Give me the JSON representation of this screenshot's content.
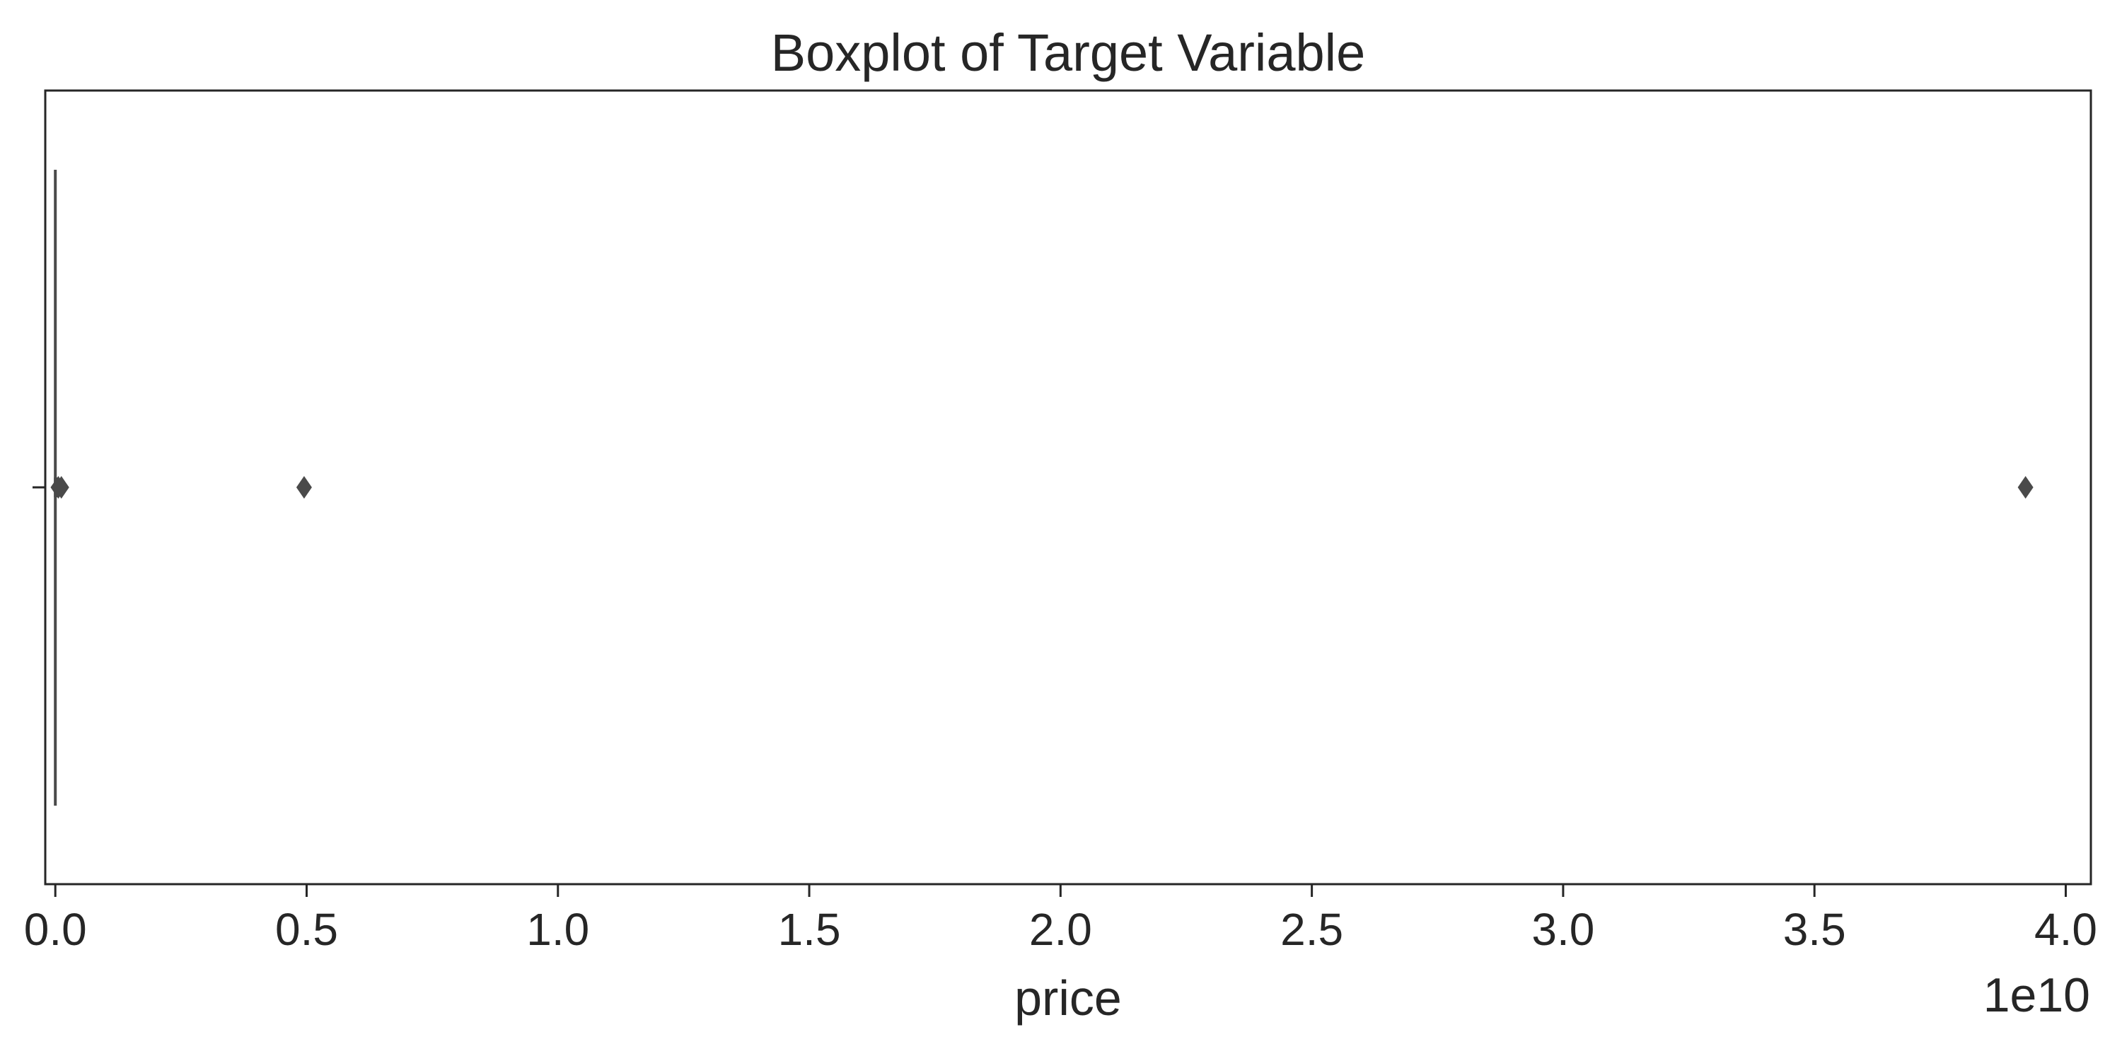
{
  "chart_data": {
    "type": "boxplot",
    "title": "Boxplot of Target Variable",
    "xlabel": "price",
    "ylabel": "",
    "offset_text": "1e10",
    "xlim": [
      -200000000,
      40500000000
    ],
    "x_ticks": [
      0,
      5000000000,
      10000000000,
      15000000000,
      20000000000,
      25000000000,
      30000000000,
      35000000000,
      40000000000
    ],
    "x_tick_labels": [
      "0.0",
      "0.5",
      "1.0",
      "1.5",
      "2.0",
      "2.5",
      "3.0",
      "3.5",
      "4.0"
    ],
    "grid": false,
    "series": [
      {
        "whisker_low": 0,
        "whisker_high": 40000000,
        "outliers": [
          60000000,
          120000000,
          4950000000,
          39200000000
        ]
      }
    ],
    "colors": {
      "box": "#4a4a4a",
      "axes": "#262626",
      "background": "#ffffff"
    }
  }
}
